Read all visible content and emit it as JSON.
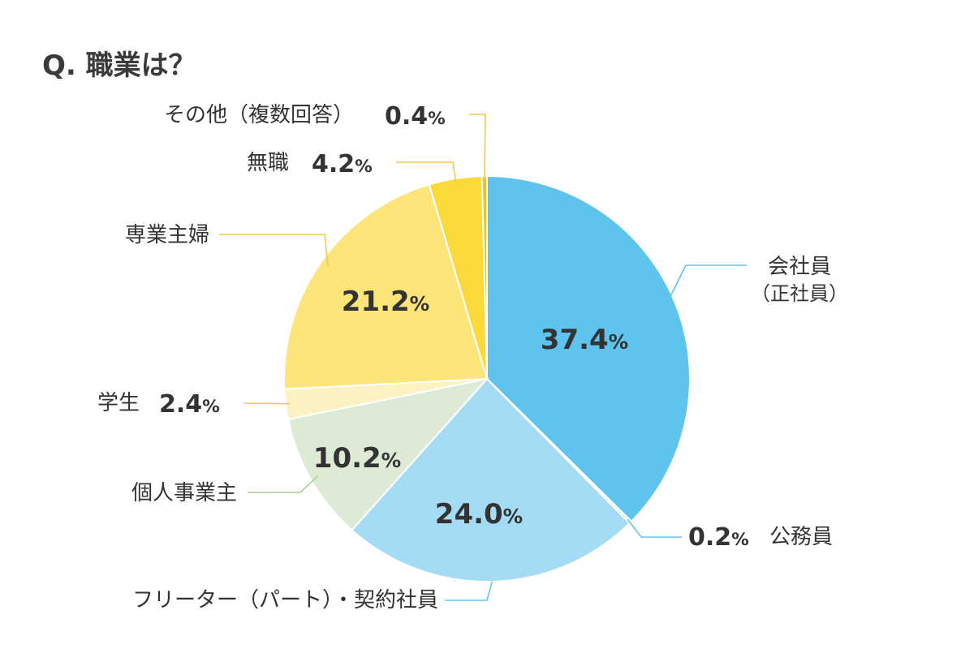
{
  "title": "Q. 職業は？",
  "chart_data": {
    "type": "pie",
    "title": "Q. 職業は？",
    "unit": "%",
    "slices": [
      {
        "label": "会社員",
        "sublabel": "（正社員）",
        "value": 37.4,
        "value_text": "37.4",
        "color": "#5ec4ee",
        "label_position": "inside"
      },
      {
        "label": "公務員",
        "value": 0.2,
        "value_text": "0.2",
        "color": "#bde4f7",
        "label_position": "outside"
      },
      {
        "label": "フリーター（パート）・契約社員",
        "value": 24.0,
        "value_text": "24.0",
        "color": "#a4dcf5",
        "label_position": "inside"
      },
      {
        "label": "個人事業主",
        "value": 10.2,
        "value_text": "10.2",
        "color": "#ddebd6",
        "label_position": "inside"
      },
      {
        "label": "学生",
        "value": 2.4,
        "value_text": "2.4",
        "color": "#fdf2c2",
        "label_position": "outside"
      },
      {
        "label": "専業主婦",
        "value": 21.2,
        "value_text": "21.2",
        "color": "#fde57a",
        "label_position": "inside"
      },
      {
        "label": "無職",
        "value": 4.2,
        "value_text": "4.2",
        "color": "#fbd93a",
        "label_position": "outside"
      },
      {
        "label": "その他（複数回答）",
        "value": 0.4,
        "value_text": "0.4",
        "color": "#f5c030",
        "label_position": "outside"
      }
    ],
    "start_angle": "12 o'clock",
    "direction": "clockwise",
    "legend": "none"
  }
}
